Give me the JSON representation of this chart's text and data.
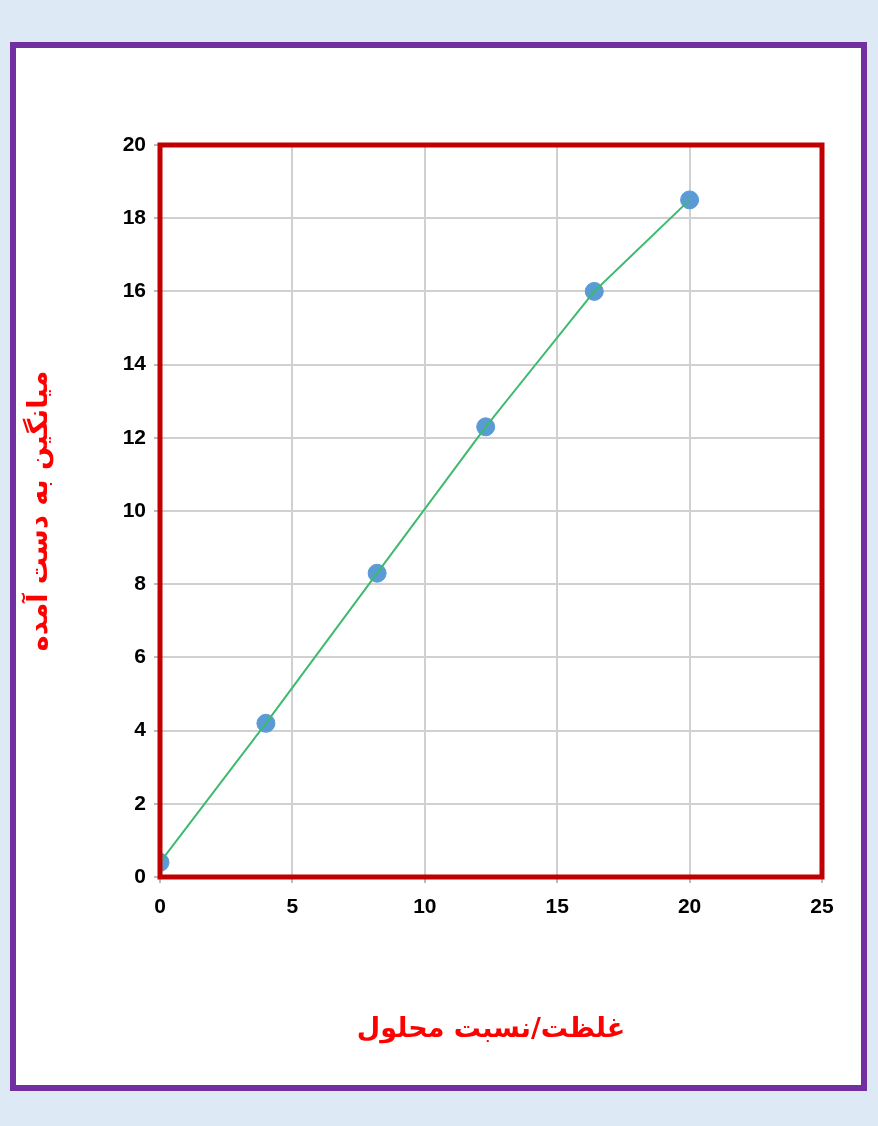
{
  "chart_data": {
    "type": "scatter",
    "xlabel": "غلظت/نسبت محلول",
    "ylabel": "میانگین به دست آمده",
    "xlim": [
      0,
      25
    ],
    "xticks": [
      0,
      5,
      10,
      15,
      20,
      25
    ],
    "ylim": [
      0,
      20
    ],
    "yticks": [
      0,
      2,
      4,
      6,
      8,
      10,
      12,
      14,
      16,
      18,
      20
    ],
    "grid": true,
    "legend": false,
    "marker": "circle",
    "series": [
      {
        "type": "line",
        "color": "#3cba6e",
        "marker": "none",
        "x": [
          0,
          4,
          8.2,
          12.3,
          16.4,
          20
        ],
        "values": [
          0.4,
          4.2,
          8.3,
          12.3,
          16,
          18.5
        ]
      },
      {
        "color": "#5b9bd5",
        "x": [
          0,
          4,
          8.2,
          12.3,
          16.4,
          20
        ],
        "values": [
          0.4,
          4.2,
          8.3,
          12.3,
          16,
          18.5
        ]
      }
    ]
  }
}
